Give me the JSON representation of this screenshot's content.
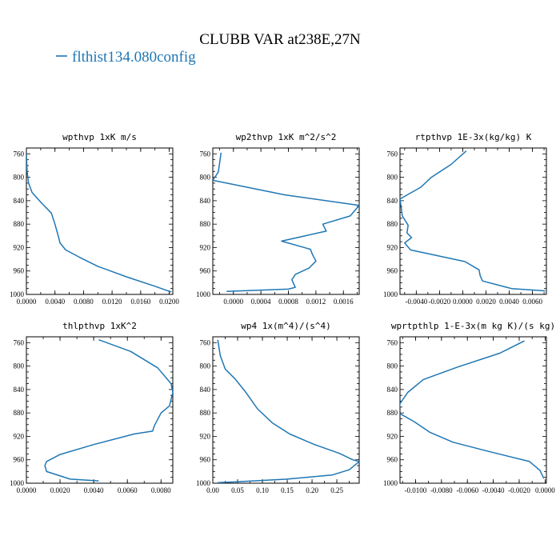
{
  "figure": {
    "title": "CLUBB VAR at238E,27N",
    "legend": [
      {
        "label": "flthist134.080config",
        "color": "#1f77b4"
      }
    ]
  },
  "chart_data": [
    {
      "type": "line",
      "title": "wpthvp  1xK m/s",
      "xlabel": "",
      "ylabel": "",
      "xlim": [
        0,
        0.0205
      ],
      "ylim": [
        1000,
        750
      ],
      "y_reversed": true,
      "xticks": [
        0,
        0.004,
        0.008,
        0.012,
        0.016,
        0.02
      ],
      "xtick_labels": [
        "0.0000",
        "0.0040",
        "0.0080",
        "0.0120",
        "0.0160",
        "0.0200"
      ],
      "yticks": [
        760,
        800,
        840,
        880,
        920,
        960,
        1000
      ],
      "ytick_labels": [
        "760",
        "800",
        "840",
        "880",
        "920",
        "960",
        "1000"
      ],
      "series": [
        {
          "color": "#1f77b4",
          "points": [
            [
              0.0,
              760
            ],
            [
              0.0001,
              790
            ],
            [
              0.0003,
              810
            ],
            [
              0.0008,
              826
            ],
            [
              0.0022,
              845
            ],
            [
              0.0035,
              861
            ],
            [
              0.004,
              880
            ],
            [
              0.0045,
              902
            ],
            [
              0.0047,
              912
            ],
            [
              0.0055,
              924
            ],
            [
              0.0075,
              937
            ],
            [
              0.01,
              952
            ],
            [
              0.014,
              970
            ],
            [
              0.018,
              986
            ],
            [
              0.0203,
              996
            ]
          ]
        }
      ]
    },
    {
      "type": "line",
      "title": "wp2thvp  1xK m^2/s^2",
      "xlabel": "",
      "ylabel": "",
      "xlim": [
        -0.0003,
        0.00183
      ],
      "ylim": [
        1000,
        750
      ],
      "y_reversed": true,
      "xticks": [
        0,
        0.0004,
        0.0008,
        0.0012,
        0.0016
      ],
      "xtick_labels": [
        "0.0000",
        "0.0004",
        "0.0008",
        "0.0012",
        "0.0016"
      ],
      "yticks": [
        760,
        800,
        840,
        880,
        920,
        960,
        1000
      ],
      "ytick_labels": [
        "760",
        "800",
        "840",
        "880",
        "920",
        "960",
        "1000"
      ],
      "series": [
        {
          "color": "#1f77b4",
          "points": [
            [
              -0.00018,
              758
            ],
            [
              -0.0002,
              775
            ],
            [
              -0.00022,
              791
            ],
            [
              -0.0003,
              805
            ],
            [
              0.00075,
              830
            ],
            [
              0.00183,
              848
            ],
            [
              0.0017,
              866
            ],
            [
              0.0013,
              880
            ],
            [
              0.00135,
              892
            ],
            [
              0.0007,
              909
            ],
            [
              0.00112,
              923
            ],
            [
              0.00115,
              932
            ],
            [
              0.0012,
              943
            ],
            [
              0.0011,
              955
            ],
            [
              0.0009,
              966
            ],
            [
              0.00085,
              975
            ],
            [
              0.0009,
              988
            ],
            [
              0.0008,
              991
            ],
            [
              -0.0001,
              995
            ]
          ]
        }
      ]
    },
    {
      "type": "line",
      "title": "rtpthvp  1E-3x(kg/kg) K",
      "xlabel": "",
      "ylabel": "",
      "xlim": [
        -0.0054,
        0.0072
      ],
      "ylim": [
        1000,
        750
      ],
      "y_reversed": true,
      "xticks": [
        -0.004,
        -0.002,
        0,
        0.002,
        0.004,
        0.006
      ],
      "xtick_labels": [
        "-0.0040",
        "-0.0020",
        "0.0000",
        "0.0020",
        "0.0040",
        "0.0060"
      ],
      "yticks": [
        760,
        800,
        840,
        880,
        920,
        960,
        1000
      ],
      "ytick_labels": [
        "760",
        "800",
        "840",
        "880",
        "920",
        "960",
        "1000"
      ],
      "series": [
        {
          "color": "#1f77b4",
          "points": [
            [
              0.0003,
              755
            ],
            [
              -0.001,
              778
            ],
            [
              -0.0027,
              800
            ],
            [
              -0.0036,
              817
            ],
            [
              -0.0054,
              837
            ],
            [
              -0.0052,
              866
            ],
            [
              -0.0047,
              882
            ],
            [
              -0.0048,
              895
            ],
            [
              -0.0044,
              903
            ],
            [
              -0.005,
              912
            ],
            [
              -0.0045,
              924
            ],
            [
              0.0002,
              944
            ],
            [
              0.0014,
              958
            ],
            [
              0.0015,
              968
            ],
            [
              0.0017,
              977
            ],
            [
              0.0042,
              990
            ],
            [
              0.0071,
              994
            ]
          ]
        }
      ]
    },
    {
      "type": "line",
      "title": "thlpthvp  1xK^2",
      "xlabel": "",
      "ylabel": "",
      "xlim": [
        0,
        0.0087
      ],
      "ylim": [
        1000,
        750
      ],
      "y_reversed": true,
      "xticks": [
        0,
        0.002,
        0.004,
        0.006,
        0.008
      ],
      "xtick_labels": [
        "0.0000",
        "0.0020",
        "0.0040",
        "0.0060",
        "0.0080"
      ],
      "yticks": [
        760,
        800,
        840,
        880,
        920,
        960,
        1000
      ],
      "ytick_labels": [
        "760",
        "800",
        "840",
        "880",
        "920",
        "960",
        "1000"
      ],
      "series": [
        {
          "color": "#1f77b4",
          "points": [
            [
              0.0043,
              755
            ],
            [
              0.0062,
              775
            ],
            [
              0.0078,
              803
            ],
            [
              0.0086,
              830
            ],
            [
              0.0087,
              845
            ],
            [
              0.0085,
              868
            ],
            [
              0.008,
              880
            ],
            [
              0.0076,
              902
            ],
            [
              0.0075,
              911
            ],
            [
              0.0064,
              916
            ],
            [
              0.004,
              934
            ],
            [
              0.002,
              951
            ],
            [
              0.0012,
              963
            ],
            [
              0.0011,
              970
            ],
            [
              0.0012,
              980
            ],
            [
              0.0026,
              993
            ],
            [
              0.0043,
              996
            ]
          ]
        }
      ]
    },
    {
      "type": "line",
      "title": "wp4  1x(m^4)/(s^4)",
      "xlabel": "",
      "ylabel": "",
      "xlim": [
        0,
        0.295
      ],
      "ylim": [
        1000,
        750
      ],
      "y_reversed": true,
      "xticks": [
        0,
        0.05,
        0.1,
        0.15,
        0.2,
        0.25
      ],
      "xtick_labels": [
        "0.00",
        "0.05",
        "0.10",
        "0.15",
        "0.20",
        "0.25"
      ],
      "yticks": [
        760,
        800,
        840,
        880,
        920,
        960,
        1000
      ],
      "ytick_labels": [
        "760",
        "800",
        "840",
        "880",
        "920",
        "960",
        "1000"
      ],
      "series": [
        {
          "color": "#1f77b4",
          "points": [
            [
              0.01,
              755
            ],
            [
              0.015,
              782
            ],
            [
              0.025,
              805
            ],
            [
              0.045,
              822
            ],
            [
              0.065,
              843
            ],
            [
              0.09,
              873
            ],
            [
              0.12,
              897
            ],
            [
              0.155,
              916
            ],
            [
              0.205,
              934
            ],
            [
              0.255,
              949
            ],
            [
              0.282,
              960
            ],
            [
              0.295,
              963
            ],
            [
              0.275,
              977
            ],
            [
              0.24,
              986
            ],
            [
              0.15,
              993
            ],
            [
              0.04,
              998
            ],
            [
              0.01,
              999
            ]
          ]
        }
      ]
    },
    {
      "type": "line",
      "title": "wprtpthlp  1-E-3x(m kg K)/(s kg)",
      "xlabel": "",
      "ylabel": "",
      "xlim": [
        -0.0112,
        0.0001
      ],
      "ylim": [
        1000,
        750
      ],
      "y_reversed": true,
      "xticks": [
        -0.01,
        -0.008,
        -0.006,
        -0.004,
        -0.002,
        0
      ],
      "xtick_labels": [
        "-0.0100",
        "-0.0080",
        "-0.0060",
        "-0.0040",
        "-0.0020",
        "0.0000"
      ],
      "yticks": [
        760,
        800,
        840,
        880,
        920,
        960,
        1000
      ],
      "ytick_labels": [
        "760",
        "800",
        "840",
        "880",
        "920",
        "960",
        "1000"
      ],
      "series": [
        {
          "color": "#1f77b4",
          "points": [
            [
              -0.0016,
              757
            ],
            [
              -0.0035,
              778
            ],
            [
              -0.0068,
              802
            ],
            [
              -0.0094,
              823
            ],
            [
              -0.0106,
              845
            ],
            [
              -0.0112,
              864
            ],
            [
              -0.0113,
              880
            ],
            [
              -0.0101,
              895
            ],
            [
              -0.0089,
              913
            ],
            [
              -0.0071,
              930
            ],
            [
              -0.0045,
              945
            ],
            [
              -0.0012,
              963
            ],
            [
              -0.0004,
              978
            ],
            [
              -0.0001,
              992
            ]
          ]
        }
      ]
    }
  ]
}
